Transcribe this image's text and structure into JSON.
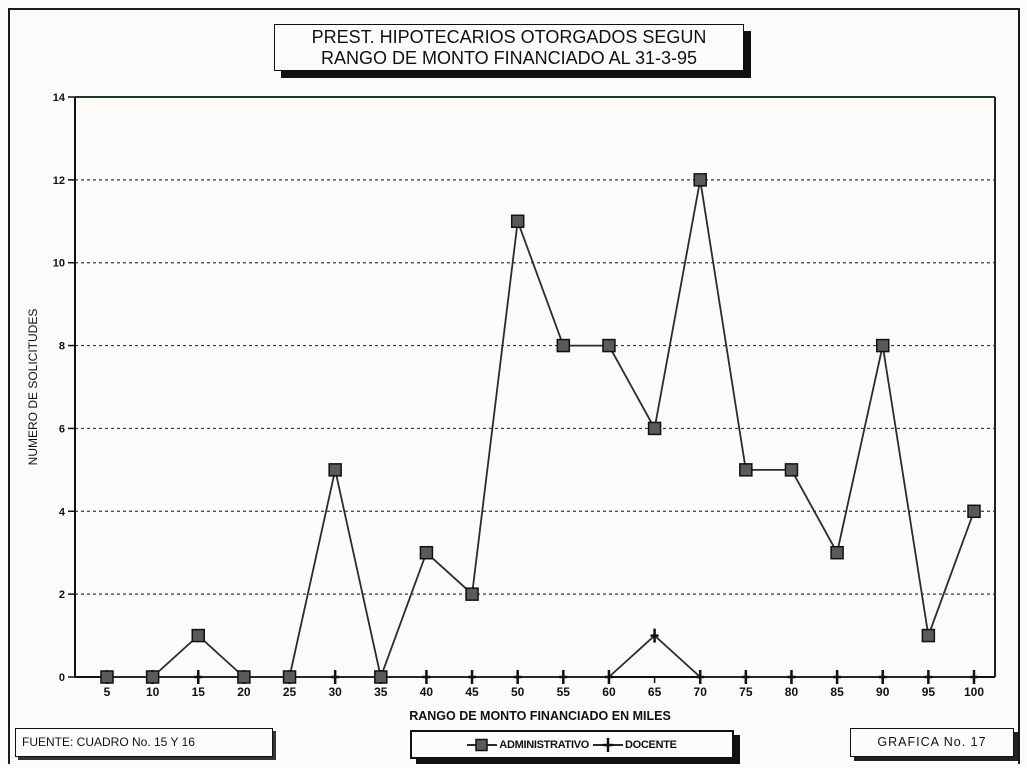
{
  "chart_data": {
    "type": "line",
    "title_lines": [
      "PREST. HIPOTECARIOS OTORGADOS SEGUN",
      "RANGO DE MONTO FINANCIADO AL 31-3-95"
    ],
    "xlabel": "RANGO DE MONTO FINANCIADO EN MILES",
    "ylabel": "NUMERO DE SOLICITUDES",
    "categories": [
      "5",
      "10",
      "15",
      "20",
      "25",
      "30",
      "35",
      "40",
      "45",
      "50",
      "55",
      "60",
      "65",
      "70",
      "75",
      "80",
      "85",
      "90",
      "95",
      "100"
    ],
    "ylim": [
      0,
      14
    ],
    "yticks": [
      0,
      2,
      4,
      6,
      8,
      10,
      12,
      14
    ],
    "grid": "horizontal dotted",
    "legend": "bottom-center",
    "series": [
      {
        "name": "ADMINISTRATIVO",
        "marker": "square",
        "values": [
          0,
          0,
          1,
          0,
          0,
          5,
          0,
          3,
          2,
          11,
          8,
          8,
          6,
          12,
          5,
          5,
          3,
          8,
          1,
          4
        ]
      },
      {
        "name": "DOCENTE",
        "marker": "plus",
        "values": [
          0,
          0,
          0,
          0,
          0,
          0,
          0,
          0,
          0,
          0,
          0,
          0,
          1,
          0,
          0,
          0,
          0,
          0,
          0,
          0
        ]
      }
    ]
  },
  "footer": {
    "source": "FUENTE: CUADRO No. 15 Y 16",
    "figure_label": "GRAFICA No. 17"
  },
  "colors": {
    "background": "#fbfbfa",
    "line": "#2b2b2b",
    "marker_fill": "#5a5a5a"
  }
}
